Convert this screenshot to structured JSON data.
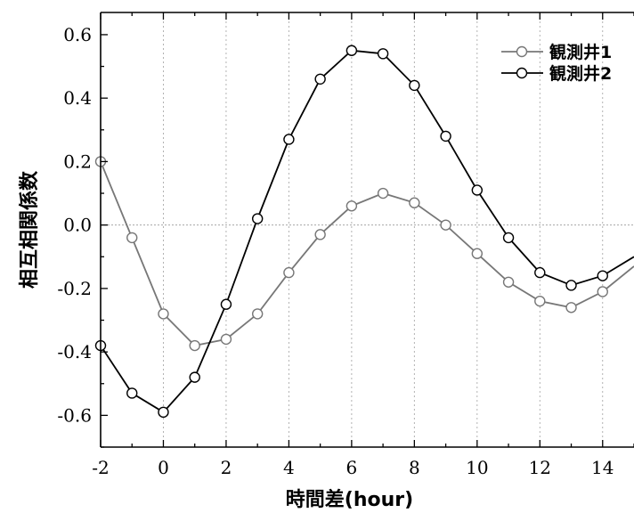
{
  "chart_data": {
    "type": "line",
    "xlabel": "時間差(hour)",
    "ylabel": "相互相関係数",
    "xlim": [
      -2,
      15
    ],
    "ylim": [
      -0.7,
      0.67
    ],
    "x_ticks": [
      -2,
      0,
      2,
      4,
      6,
      8,
      10,
      12,
      14
    ],
    "x_tick_labels": [
      "-2",
      "0",
      "2",
      "4",
      "6",
      "8",
      "10",
      "12",
      "14"
    ],
    "y_ticks": [
      -0.6,
      -0.4,
      -0.2,
      0.0,
      0.2,
      0.4,
      0.6
    ],
    "y_tick_labels": [
      "-0.6",
      "-0.4",
      "-0.2",
      "0.0",
      "0.2",
      "0.4",
      "0.6"
    ],
    "grid": "vertical dotted at x ticks, horizontal dotted at y=0",
    "legend_position": "top-right",
    "series": [
      {
        "name": "観測井1",
        "color": "#777777",
        "marker": "open-circle",
        "x": [
          -2,
          -1,
          0,
          1,
          2,
          3,
          4,
          5,
          6,
          7,
          8,
          9,
          10,
          11,
          12,
          13,
          14,
          15
        ],
        "values": [
          0.2,
          -0.04,
          -0.28,
          -0.38,
          -0.36,
          -0.28,
          -0.15,
          -0.03,
          0.06,
          0.1,
          0.07,
          0.0,
          -0.09,
          -0.18,
          -0.24,
          -0.26,
          -0.21,
          -0.13
        ]
      },
      {
        "name": "観測井2",
        "color": "#000000",
        "marker": "open-circle",
        "x": [
          -2,
          -1,
          0,
          1,
          2,
          3,
          4,
          5,
          6,
          7,
          8,
          9,
          10,
          11,
          12,
          13,
          14,
          15
        ],
        "values": [
          -0.38,
          -0.53,
          -0.59,
          -0.48,
          -0.25,
          0.02,
          0.27,
          0.46,
          0.55,
          0.54,
          0.44,
          0.28,
          0.11,
          -0.04,
          -0.15,
          -0.19,
          -0.16,
          -0.1
        ]
      }
    ]
  }
}
